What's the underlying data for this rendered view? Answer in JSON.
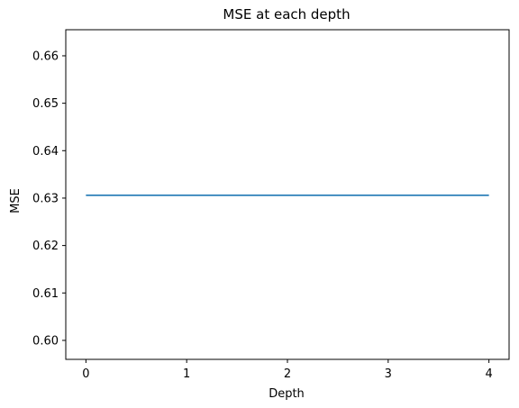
{
  "chart_data": {
    "type": "line",
    "title": "MSE at each depth",
    "xlabel": "Depth",
    "ylabel": "MSE",
    "x": [
      0,
      1,
      2,
      3,
      4
    ],
    "series": [
      {
        "values": [
          0.6306,
          0.6306,
          0.6306,
          0.6306,
          0.6306
        ],
        "color": "#1f77b4"
      }
    ],
    "xlim": [
      -0.2,
      4.2
    ],
    "ylim": [
      0.596,
      0.6655
    ],
    "xticks": [
      0,
      1,
      2,
      3,
      4
    ],
    "xtick_labels": [
      "0",
      "1",
      "2",
      "3",
      "4"
    ],
    "yticks": [
      0.6,
      0.61,
      0.62,
      0.63,
      0.64,
      0.65,
      0.66
    ],
    "ytick_labels": [
      "0.60",
      "0.61",
      "0.62",
      "0.63",
      "0.64",
      "0.65",
      "0.66"
    ],
    "grid": false,
    "legend": false
  }
}
